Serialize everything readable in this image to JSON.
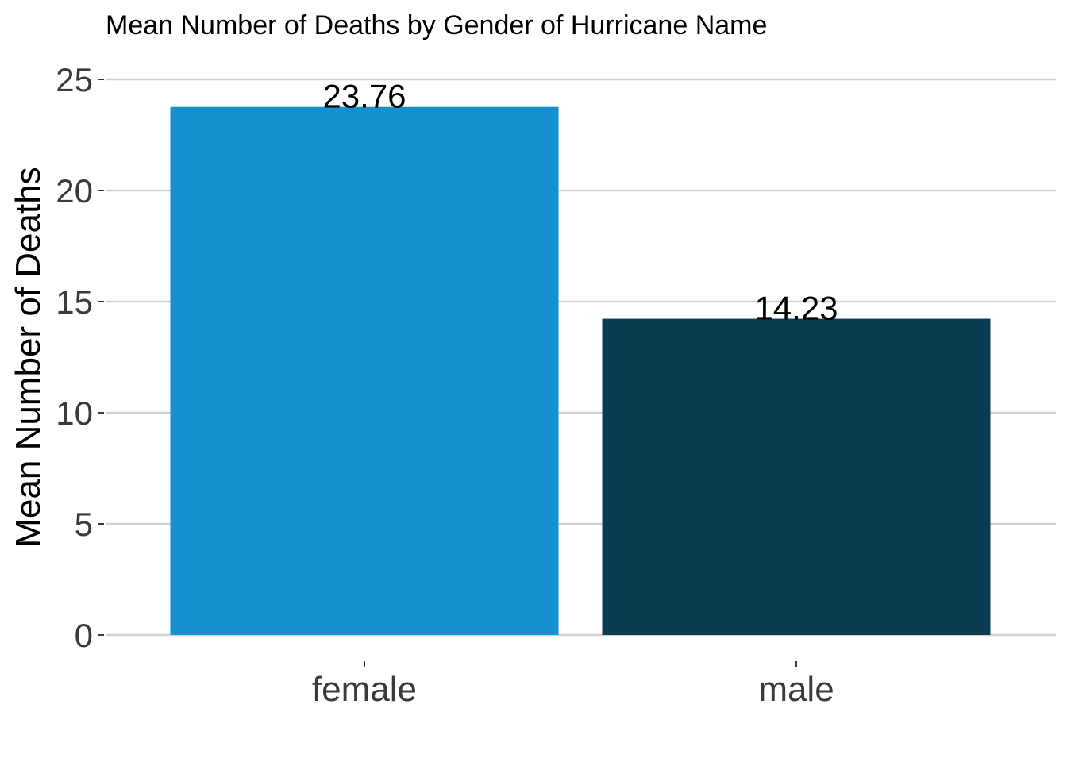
{
  "chart_data": {
    "type": "bar",
    "title": "Mean Number of Deaths by Gender of Hurricane Name",
    "xlabel": "",
    "ylabel": "Mean Number of Deaths",
    "categories": [
      "female",
      "male"
    ],
    "values": [
      23.76,
      14.23
    ],
    "value_labels": [
      "23.76",
      "14.23"
    ],
    "colors": [
      "#1591d0",
      "#0b3c52"
    ],
    "ylim": [
      0,
      25
    ],
    "yticks": [
      0,
      5,
      10,
      15,
      20,
      25
    ],
    "ytick_labels": [
      "0",
      "5",
      "10",
      "15",
      "20",
      "25"
    ],
    "grid": "horizontal",
    "legend": "none"
  }
}
